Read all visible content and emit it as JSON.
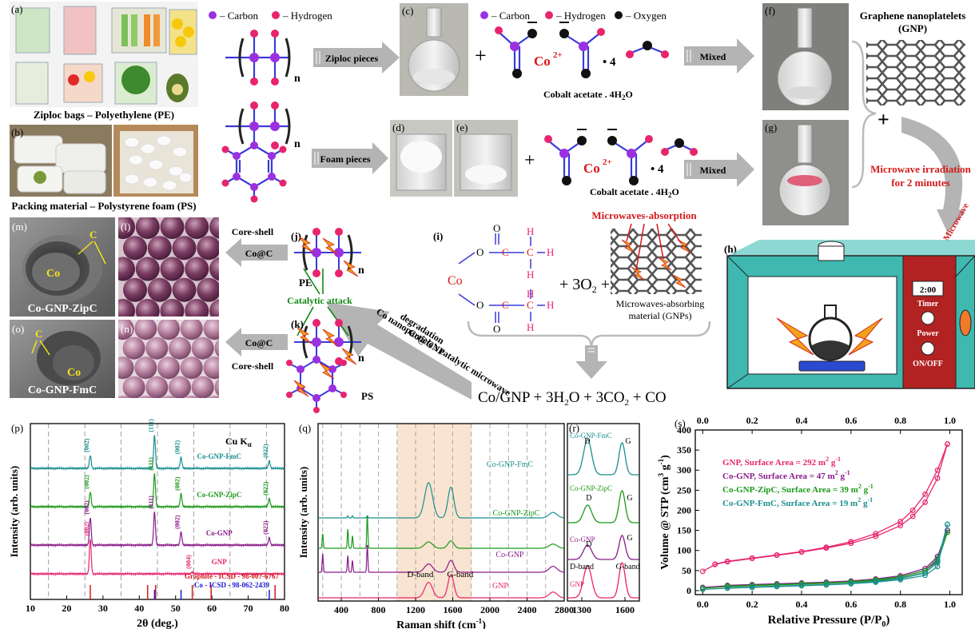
{
  "panels": {
    "a": "(a)",
    "b": "(b)",
    "c": "(c)",
    "d": "(d)",
    "e": "(e)",
    "f": "(f)",
    "g": "(g)",
    "h": "(h)",
    "i": "(i)",
    "j": "(j)",
    "k": "(k)",
    "l": "(l)",
    "m": "(m)",
    "n": "(n)",
    "o": "(o)",
    "p": "(p)",
    "q": "(q)",
    "r": "(r)",
    "s": "(s)"
  },
  "legend": {
    "carbon": "– Carbon",
    "hydrogen": "– Hydrogen",
    "oxygen": "– Oxygen"
  },
  "colors": {
    "carbon": "#9b30e0",
    "hydrogen": "#e8246e",
    "oxygen": "#111111",
    "bond": "#3a3ad8",
    "arrow": "#b4b4b4",
    "microwave_box": "#3fb8b0",
    "oven_panel": "#b22222",
    "red_text": "#d41a1a",
    "green_text": "#118811"
  },
  "captions": {
    "ziploc": "Ziploc bags – Polyethylene (PE)",
    "packing": "Packing material – Polystyrene foam (PS)",
    "ziploc_pieces": "Ziploc pieces",
    "foam_pieces": "Foam pieces",
    "mixed1": "Mixed",
    "mixed2": "Mixed",
    "co": "Co",
    "co_charge": "2+",
    "cobalt_acetate": "Cobalt acetate . 4H",
    "h2o_sub": "2",
    "h2o_o": "O",
    "dot4": "• 4",
    "gnp_title1": "Graphene nanoplatelets",
    "gnp_title2": "(GNP)",
    "plus": "+",
    "microwave_irr1": "Microwave irradiation",
    "microwave_irr2": "for 2 minutes",
    "microwave": "Microwave",
    "timer_value": "2:00",
    "timer": "Timer",
    "power": "Power",
    "onoff": "ON/OFF",
    "mw_absorption": "Microwaves-absorption",
    "mw_material1": "Microwaves-absorbing",
    "mw_material2": "material (GNPs)",
    "plus3o2": "+ 3O",
    "o2_sub": "2",
    "product": "Co/GNP + 3H",
    "product_sub": "2",
    "product_rest": "O + 3CO",
    "product_sub2": "2",
    "product_end": " + CO",
    "degradation1": "Co nanoparticle's catalytic microwave",
    "degradation2": "degradation",
    "co_gnp": "Co@GNP",
    "core_shell1": "Core-shell",
    "core_shell2": "Core-shell",
    "co_c1": "Co@C",
    "co_c2": "Co@C",
    "pe": "PE",
    "ps": "PS",
    "catalytic_attack": "Catalytic attack",
    "n": "n",
    "tem_c": "C",
    "tem_co": "Co",
    "zipc_label": "Co-GNP-ZipC",
    "fmc_label": "Co-GNP-FmC",
    "o_atom": "O",
    "c_atom": "C",
    "h_atom": "H"
  },
  "chart_data": [
    {
      "type": "line",
      "title": "",
      "xlabel": "2θ (deg.)",
      "ylabel": "Intensity (arb. units)",
      "xlim": [
        10,
        80
      ],
      "xticks": [
        10,
        20,
        30,
        40,
        50,
        60,
        70,
        80
      ],
      "annotation": "Cu K",
      "annotation_sub": "α",
      "series": [
        {
          "name": "Co-GNP-FmC",
          "color": "#1a8f8f",
          "peaks": [
            {
              "x": 26.5,
              "h": 0.35,
              "label": "(002)"
            },
            {
              "x": 44.2,
              "h": 0.9,
              "label": "(111)"
            },
            {
              "x": 51.5,
              "h": 0.3,
              "label": "(002)"
            },
            {
              "x": 75.8,
              "h": 0.2,
              "label": "(022)"
            }
          ]
        },
        {
          "name": "Co-GNP-ZipC",
          "color": "#1a9a1a",
          "peaks": [
            {
              "x": 26.5,
              "h": 0.4,
              "label": "(002)"
            },
            {
              "x": 44.2,
              "h": 0.9,
              "label": "(111)"
            },
            {
              "x": 51.5,
              "h": 0.35,
              "label": "(002)"
            },
            {
              "x": 75.8,
              "h": 0.22,
              "label": "(022)"
            }
          ]
        },
        {
          "name": "Co-GNP",
          "color": "#8a1a8a",
          "peaks": [
            {
              "x": 26.5,
              "h": 0.75,
              "label": "(002)"
            },
            {
              "x": 44.2,
              "h": 0.9,
              "label": "(111)"
            },
            {
              "x": 51.5,
              "h": 0.35,
              "label": "(002)"
            },
            {
              "x": 75.8,
              "h": 0.2,
              "label": "(022)"
            }
          ]
        },
        {
          "name": "GNP",
          "color": "#e8246e",
          "peaks": [
            {
              "x": 26.5,
              "h": 0.95,
              "label": "(002)"
            },
            {
              "x": 54.6,
              "h": 0.05,
              "label": "(004)"
            }
          ]
        }
      ],
      "references": [
        {
          "name": "Graphite - ICSD - 98-007-6767",
          "color": "#d41a1a",
          "lines": [
            26.5,
            42.3,
            44.5,
            54.6,
            59.8,
            77.4
          ]
        },
        {
          "name": "Co - ICSD - 98-062-2439",
          "color": "#1a1ad4",
          "lines": [
            44.2,
            51.5,
            75.8
          ]
        }
      ]
    },
    {
      "type": "line",
      "title": "",
      "xlabel": "Raman shift (cm",
      "xlabel_sup": "-1",
      "xlabel_end": ")",
      "ylabel": "Intensity (arb. units)",
      "xlim": [
        150,
        2800
      ],
      "xticks": [
        400,
        800,
        1200,
        1600,
        2000,
        2400,
        2800
      ],
      "highlight": [
        1000,
        1800
      ],
      "series": [
        {
          "name": "Co-GNP-FmC",
          "color": "#1a8f8f"
        },
        {
          "name": "Co-GNP-ZipC",
          "color": "#1a9a1a"
        },
        {
          "name": "Co-GNP",
          "color": "#8a1a8a"
        },
        {
          "name": "GNP",
          "color": "#e8246e"
        }
      ],
      "band_labels": {
        "d": "D-band",
        "g": "G-band"
      }
    },
    {
      "type": "line",
      "title": "",
      "xlim": [
        1200,
        1700
      ],
      "xticks": [
        1300,
        1600
      ],
      "series": [
        {
          "name": "Co-GNP-FmC",
          "color": "#1a8f8f"
        },
        {
          "name": "Co-GNP-ZipC",
          "color": "#1a9a1a"
        },
        {
          "name": "Co-GNP",
          "color": "#8a1a8a"
        },
        {
          "name": "GNP",
          "color": "#e8246e"
        }
      ],
      "band_labels": {
        "d": "D",
        "g": "G",
        "d_band": "D-band",
        "g_band": "G-band"
      }
    },
    {
      "type": "line",
      "title": "",
      "xlabel": "Relative Pressure (P/P",
      "xlabel_sub": "0",
      "xlabel_end": ")",
      "ylabel": "Volume @ STP (cm",
      "ylabel_sup": "3",
      "ylabel_g": " g",
      "ylabel_sup2": "-1",
      "ylabel_end": ")",
      "xlim": [
        -0.03,
        1.05
      ],
      "ylim": [
        -10,
        400
      ],
      "xticks": [
        0.0,
        0.2,
        0.4,
        0.6,
        0.8,
        1.0
      ],
      "yticks": [
        0,
        50,
        100,
        150,
        200,
        250,
        300,
        350,
        400
      ],
      "series": [
        {
          "name": "GNP, Surface Area = 292 m",
          "sup": "2",
          "unit": " g",
          "sup2": "-1",
          "color": "#e8246e",
          "adsorption": [
            [
              0.0,
              48
            ],
            [
              0.05,
              65
            ],
            [
              0.1,
              72
            ],
            [
              0.2,
              80
            ],
            [
              0.3,
              88
            ],
            [
              0.4,
              96
            ],
            [
              0.5,
              106
            ],
            [
              0.6,
              118
            ],
            [
              0.7,
              135
            ],
            [
              0.8,
              162
            ],
            [
              0.85,
              185
            ],
            [
              0.9,
              220
            ],
            [
              0.95,
              280
            ],
            [
              0.99,
              365
            ]
          ],
          "desorption": [
            [
              0.99,
              365
            ],
            [
              0.95,
              300
            ],
            [
              0.9,
              240
            ],
            [
              0.85,
              200
            ],
            [
              0.8,
              172
            ],
            [
              0.7,
              142
            ],
            [
              0.6,
              122
            ],
            [
              0.5,
              108
            ],
            [
              0.4,
              97
            ],
            [
              0.3,
              89
            ],
            [
              0.2,
              81
            ],
            [
              0.1,
              73
            ],
            [
              0.05,
              66
            ]
          ]
        },
        {
          "name": "Co-GNP, Surface Area = 47 m",
          "sup": "2",
          "unit": " g",
          "sup2": "-1",
          "color": "#8a1a8a",
          "adsorption": [
            [
              0.0,
              8
            ],
            [
              0.1,
              12
            ],
            [
              0.2,
              14
            ],
            [
              0.3,
              16
            ],
            [
              0.4,
              18
            ],
            [
              0.5,
              20
            ],
            [
              0.6,
              23
            ],
            [
              0.7,
              27
            ],
            [
              0.8,
              34
            ],
            [
              0.9,
              50
            ],
            [
              0.95,
              75
            ],
            [
              0.99,
              150
            ]
          ],
          "desorption": [
            [
              0.99,
              150
            ],
            [
              0.95,
              85
            ],
            [
              0.9,
              55
            ],
            [
              0.8,
              37
            ],
            [
              0.7,
              29
            ],
            [
              0.6,
              24
            ],
            [
              0.5,
              21
            ],
            [
              0.4,
              19
            ],
            [
              0.3,
              17
            ],
            [
              0.2,
              15
            ],
            [
              0.1,
              13
            ]
          ]
        },
        {
          "name": "Co-GNP-ZipC, Surface Area = 39 m",
          "sup": "2",
          "unit": " g",
          "sup2": "-1",
          "color": "#1a9a1a",
          "adsorption": [
            [
              0.0,
              6
            ],
            [
              0.1,
              10
            ],
            [
              0.2,
              12
            ],
            [
              0.3,
              14
            ],
            [
              0.4,
              16
            ],
            [
              0.5,
              18
            ],
            [
              0.6,
              21
            ],
            [
              0.7,
              25
            ],
            [
              0.8,
              31
            ],
            [
              0.9,
              45
            ],
            [
              0.95,
              70
            ],
            [
              0.99,
              145
            ]
          ],
          "desorption": [
            [
              0.99,
              145
            ],
            [
              0.95,
              80
            ],
            [
              0.9,
              50
            ],
            [
              0.8,
              34
            ],
            [
              0.7,
              27
            ],
            [
              0.6,
              22
            ],
            [
              0.5,
              19
            ],
            [
              0.4,
              17
            ],
            [
              0.3,
              15
            ],
            [
              0.2,
              13
            ],
            [
              0.1,
              11
            ]
          ]
        },
        {
          "name": "Co-GNP-FmC, Surface Area = 19 m",
          "sup": "2",
          "unit": " g",
          "sup2": "-1",
          "color": "#1a8f8f",
          "adsorption": [
            [
              0.0,
              3
            ],
            [
              0.1,
              6
            ],
            [
              0.2,
              8
            ],
            [
              0.3,
              10
            ],
            [
              0.4,
              12
            ],
            [
              0.5,
              14
            ],
            [
              0.6,
              17
            ],
            [
              0.7,
              21
            ],
            [
              0.8,
              27
            ],
            [
              0.9,
              38
            ],
            [
              0.95,
              60
            ],
            [
              0.99,
              165
            ]
          ],
          "desorption": [
            [
              0.99,
              165
            ],
            [
              0.95,
              72
            ],
            [
              0.9,
              44
            ],
            [
              0.8,
              30
            ],
            [
              0.7,
              23
            ],
            [
              0.6,
              18
            ],
            [
              0.5,
              15
            ],
            [
              0.4,
              13
            ],
            [
              0.3,
              11
            ],
            [
              0.2,
              9
            ],
            [
              0.1,
              7
            ]
          ]
        }
      ]
    }
  ]
}
